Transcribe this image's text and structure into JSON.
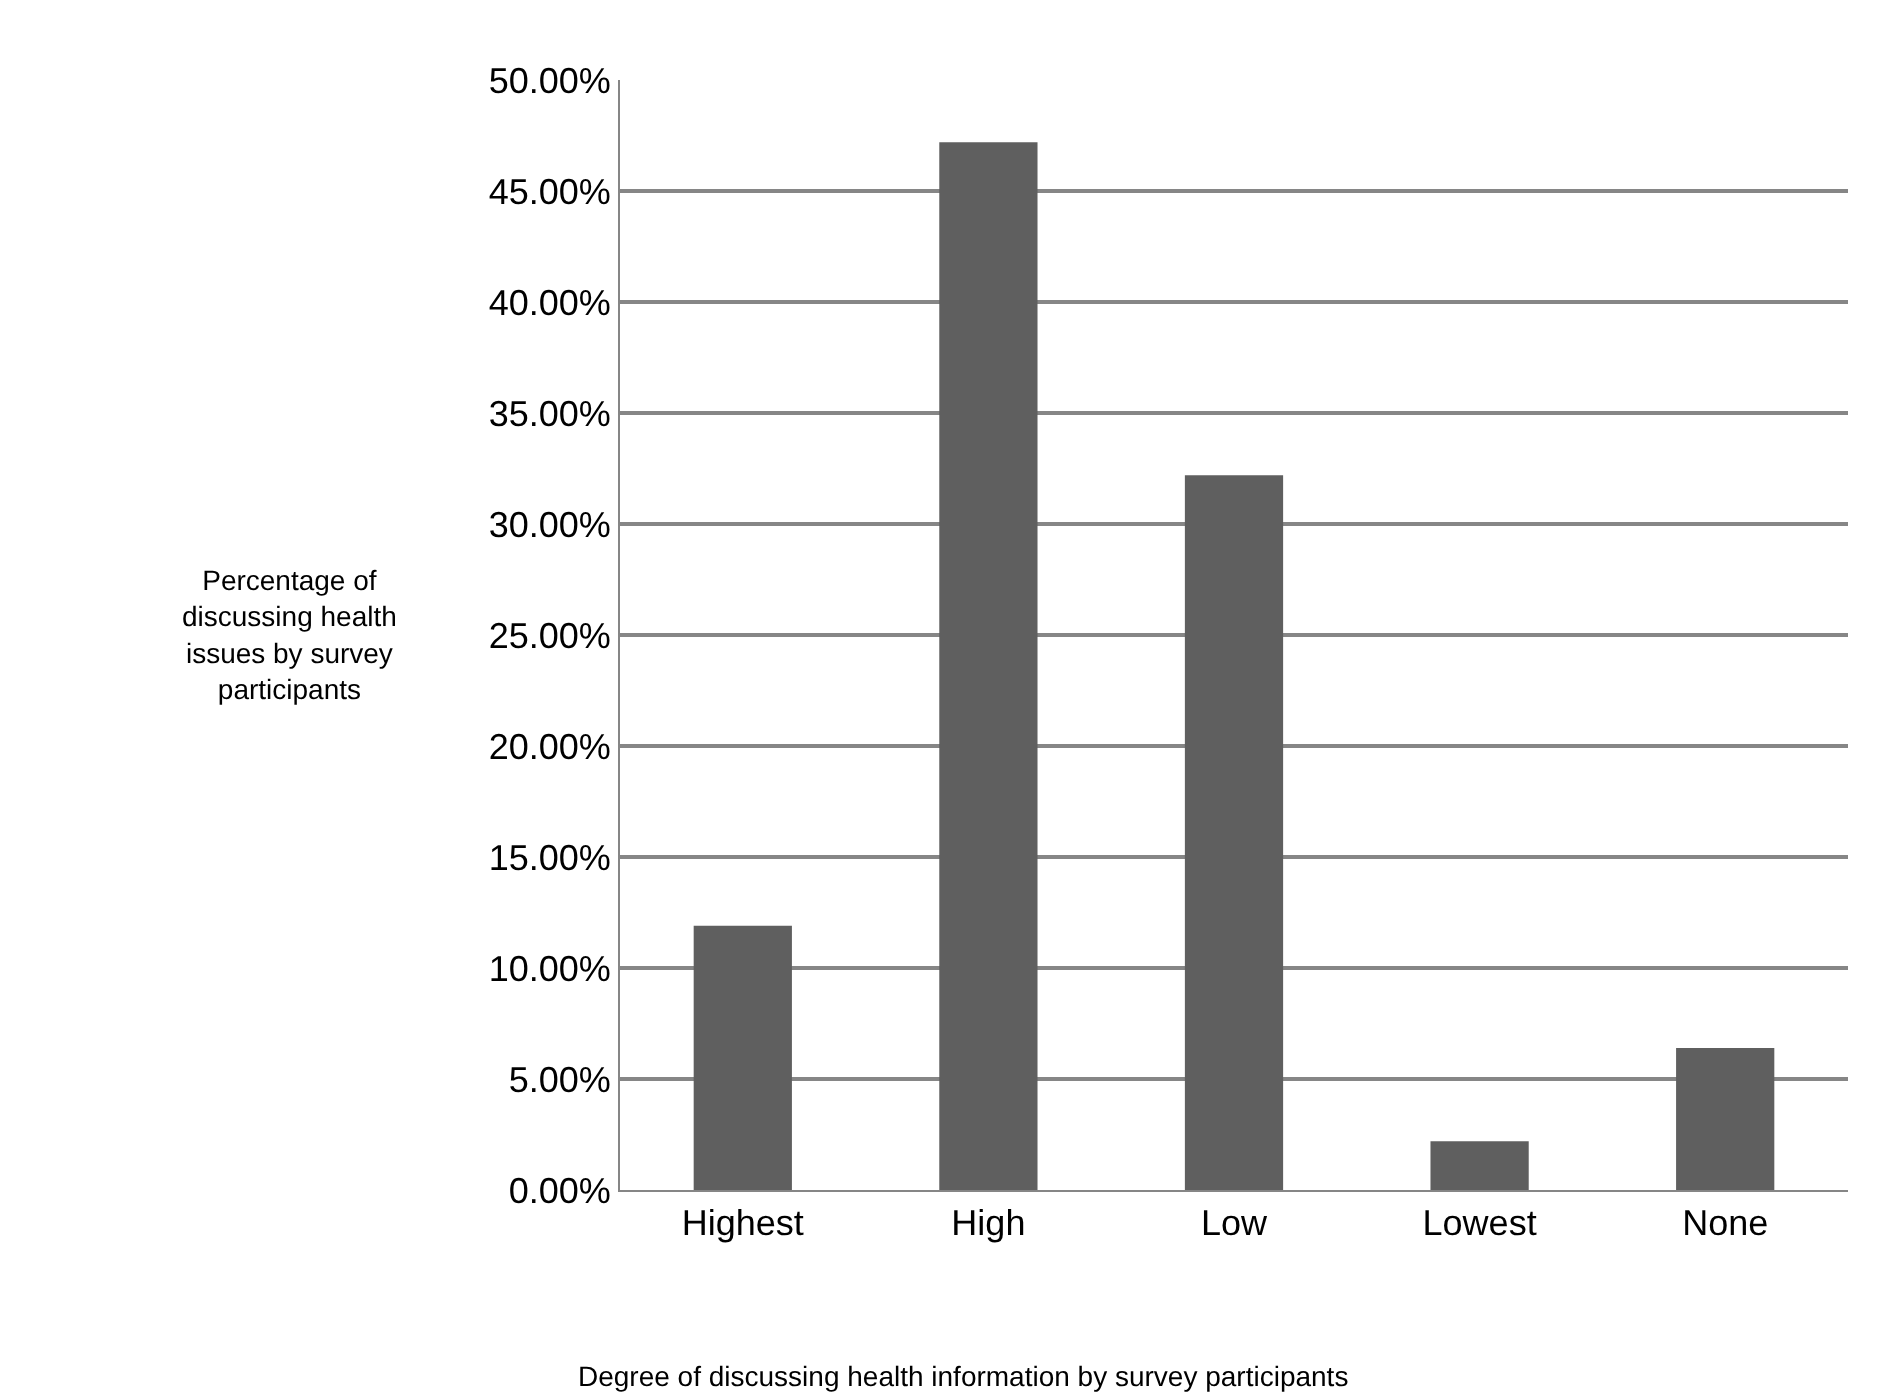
{
  "chart_data": {
    "type": "bar",
    "xlabel": "Degree of discussing health information by survey participants",
    "ylabel": "Percentage of discussing health issues by survey participants",
    "categories": [
      "Highest",
      "High",
      "Low",
      "Lowest",
      "None"
    ],
    "values": [
      11.9,
      47.2,
      32.2,
      2.2,
      6.4
    ],
    "color": "#5f5f5f",
    "ylim": [
      0,
      50
    ],
    "yticks": [
      {
        "value": 0,
        "label": "0.00%"
      },
      {
        "value": 5,
        "label": "5.00%"
      },
      {
        "value": 10,
        "label": "10.00%"
      },
      {
        "value": 15,
        "label": "15.00%"
      },
      {
        "value": 20,
        "label": "20.00%"
      },
      {
        "value": 25,
        "label": "25.00%"
      },
      {
        "value": 30,
        "label": "30.00%"
      },
      {
        "value": 35,
        "label": "35.00%"
      },
      {
        "value": 40,
        "label": "40.00%"
      },
      {
        "value": 45,
        "label": "45.00%"
      },
      {
        "value": 50,
        "label": "50.00%"
      }
    ],
    "grid": "y"
  }
}
